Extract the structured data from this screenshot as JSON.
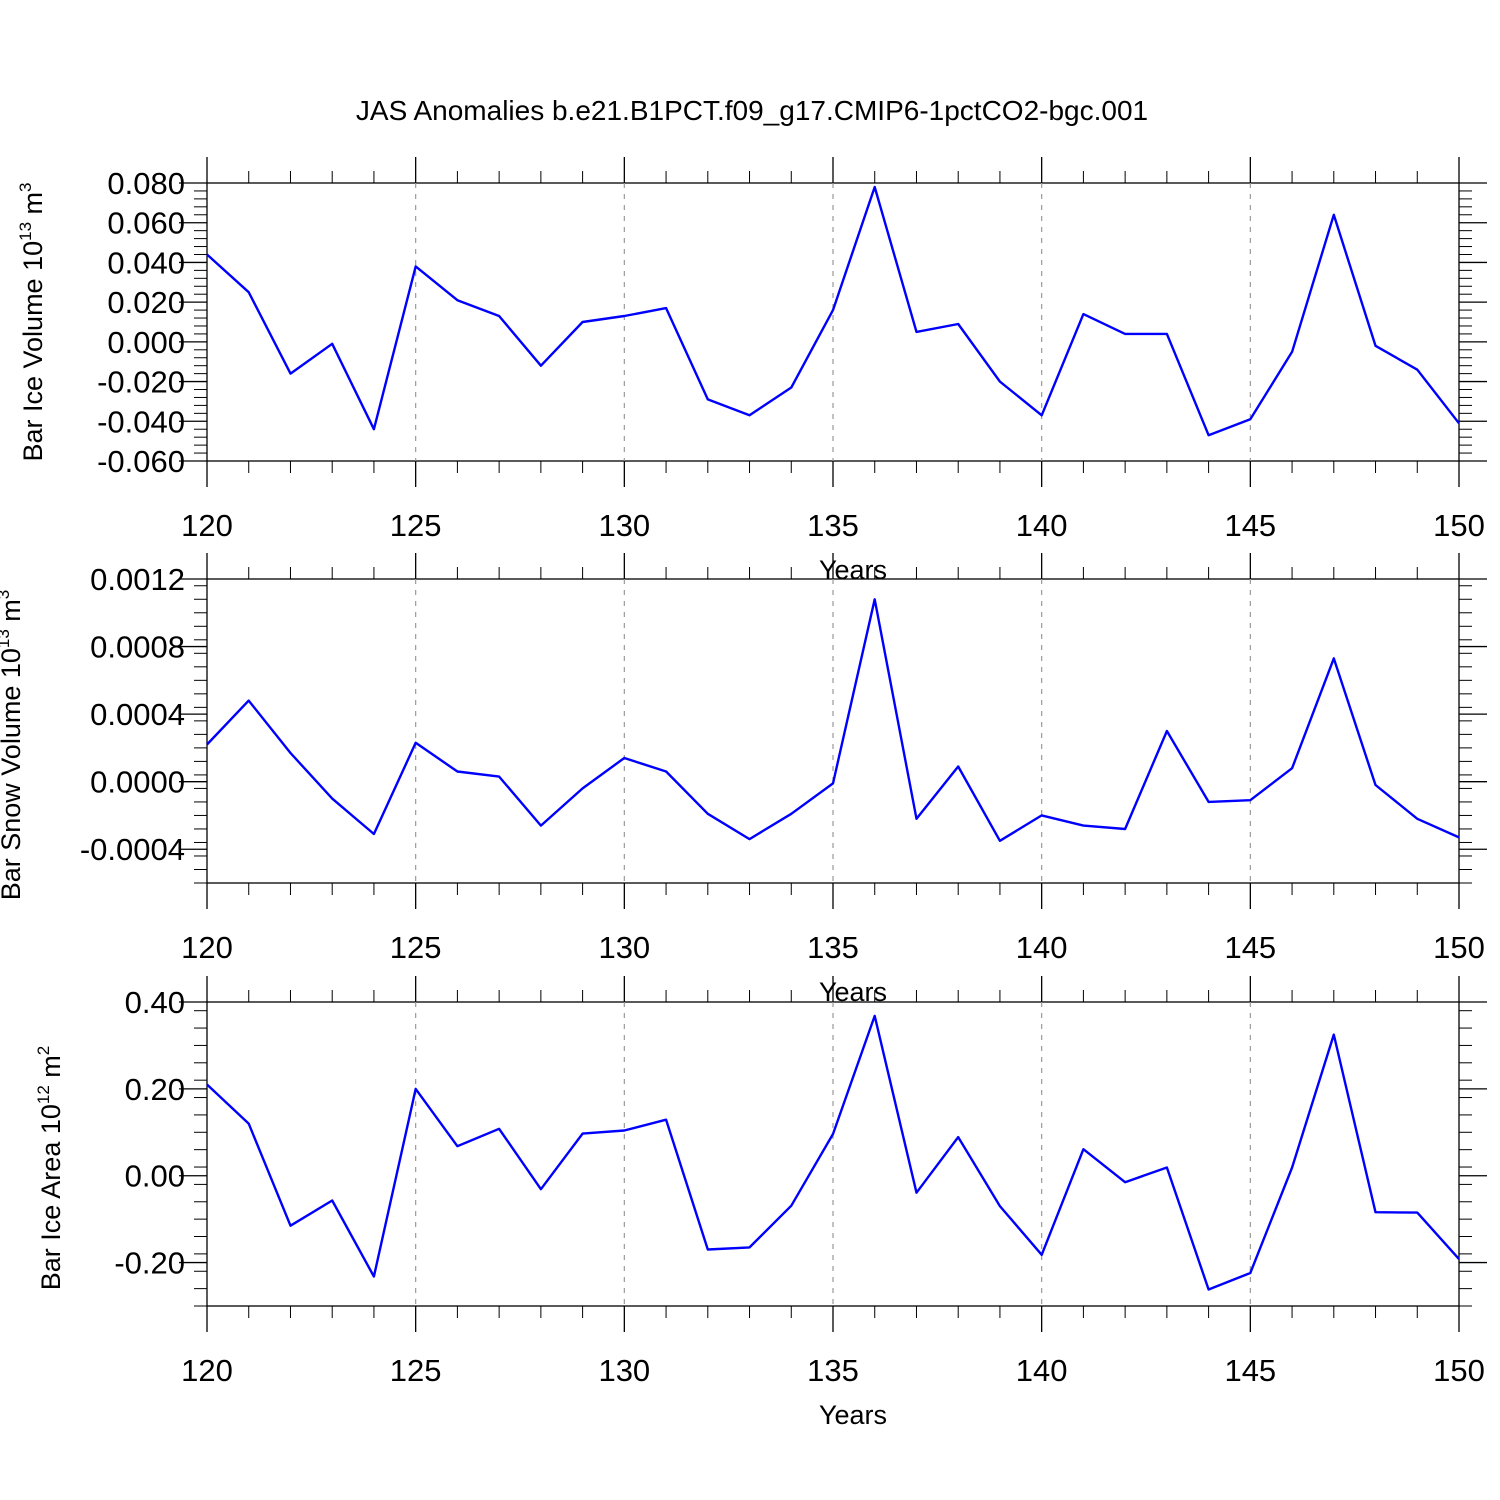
{
  "title": "JAS Anomalies b.e21.B1PCT.f09_g17.CMIP6-1pctCO2-bgc.001",
  "colors": {
    "line": "#0000ff",
    "axis": "#000000",
    "grid": "#999999"
  },
  "chart_data": [
    {
      "type": "line",
      "ylabel": "Bar Ice Volume 10",
      "ylabel_exp": "13",
      "ylabel_unit": " m",
      "ylabel_unit_exp": "3",
      "xlabel": "Years",
      "xlim": [
        120,
        150
      ],
      "ylim": [
        -0.06,
        0.08
      ],
      "yticks": [
        -0.06,
        -0.04,
        -0.02,
        0.0,
        0.02,
        0.04,
        0.06,
        0.08
      ],
      "ytick_labels": [
        "-0.060",
        "-0.040",
        "-0.020",
        "0.000",
        "0.020",
        "0.040",
        "0.060",
        "0.080"
      ],
      "xticks": [
        120,
        125,
        130,
        135,
        140,
        145,
        150
      ],
      "xtick_labels": [
        "120",
        "125",
        "130",
        "135",
        "140",
        "145",
        "150"
      ],
      "x": [
        120,
        121,
        122,
        123,
        124,
        125,
        126,
        127,
        128,
        129,
        130,
        131,
        132,
        133,
        134,
        135,
        136,
        137,
        138,
        139,
        140,
        141,
        142,
        143,
        144,
        145,
        146,
        147,
        148,
        149,
        150
      ],
      "values": [
        0.044,
        0.025,
        -0.016,
        -0.001,
        -0.044,
        0.038,
        0.021,
        0.013,
        -0.012,
        0.01,
        0.013,
        0.017,
        -0.029,
        -0.037,
        -0.023,
        0.016,
        0.078,
        0.005,
        0.009,
        -0.02,
        -0.037,
        0.014,
        0.004,
        0.004,
        -0.047,
        -0.039,
        -0.005,
        0.064,
        -0.002,
        -0.014,
        -0.041
      ]
    },
    {
      "type": "line",
      "ylabel": "Bar Snow Volume 10",
      "ylabel_exp": "13",
      "ylabel_unit": " m",
      "ylabel_unit_exp": "3",
      "xlabel": "Years",
      "xlim": [
        120,
        150
      ],
      "ylim": [
        -0.0006,
        0.0012
      ],
      "yticks": [
        -0.0004,
        0.0,
        0.0004,
        0.0008,
        0.0012
      ],
      "ytick_labels": [
        "-0.0004",
        "0.0000",
        "0.0004",
        "0.0008",
        "0.0012"
      ],
      "xticks": [
        120,
        125,
        130,
        135,
        140,
        145,
        150
      ],
      "xtick_labels": [
        "120",
        "125",
        "130",
        "135",
        "140",
        "145",
        "150"
      ],
      "x": [
        120,
        121,
        122,
        123,
        124,
        125,
        126,
        127,
        128,
        129,
        130,
        131,
        132,
        133,
        134,
        135,
        136,
        137,
        138,
        139,
        140,
        141,
        142,
        143,
        144,
        145,
        146,
        147,
        148,
        149,
        150
      ],
      "values": [
        0.00022,
        0.00048,
        0.00017,
        -0.0001,
        -0.00031,
        0.00023,
        6e-05,
        3e-05,
        -0.00026,
        -4e-05,
        0.00014,
        6e-05,
        -0.00019,
        -0.00034,
        -0.00019,
        -1e-05,
        0.00108,
        -0.00022,
        9e-05,
        -0.00035,
        -0.0002,
        -0.00026,
        -0.00028,
        0.0003,
        -0.00012,
        -0.00011,
        8e-05,
        0.00073,
        -2e-05,
        -0.00022,
        -0.00033
      ]
    },
    {
      "type": "line",
      "ylabel": "Bar Ice Area 10",
      "ylabel_exp": "12",
      "ylabel_unit": " m",
      "ylabel_unit_exp": "2",
      "xlabel": "Years",
      "xlim": [
        120,
        150
      ],
      "ylim": [
        -0.3,
        0.4
      ],
      "yticks": [
        -0.2,
        0.0,
        0.2,
        0.4
      ],
      "ytick_labels": [
        "-0.20",
        "0.00",
        "0.20",
        "0.40"
      ],
      "xticks": [
        120,
        125,
        130,
        135,
        140,
        145,
        150
      ],
      "xtick_labels": [
        "120",
        "125",
        "130",
        "135",
        "140",
        "145",
        "150"
      ],
      "x": [
        120,
        121,
        122,
        123,
        124,
        125,
        126,
        127,
        128,
        129,
        130,
        131,
        132,
        133,
        134,
        135,
        136,
        137,
        138,
        139,
        140,
        141,
        142,
        143,
        144,
        145,
        146,
        147,
        148,
        149,
        150
      ],
      "values": [
        0.21,
        0.12,
        -0.115,
        -0.057,
        -0.232,
        0.2,
        0.068,
        0.108,
        -0.031,
        0.097,
        0.104,
        0.129,
        -0.17,
        -0.165,
        -0.069,
        0.096,
        0.368,
        -0.039,
        0.089,
        -0.07,
        -0.182,
        0.061,
        -0.015,
        0.019,
        -0.262,
        -0.224,
        0.019,
        0.325,
        -0.084,
        -0.085,
        -0.192
      ]
    }
  ]
}
